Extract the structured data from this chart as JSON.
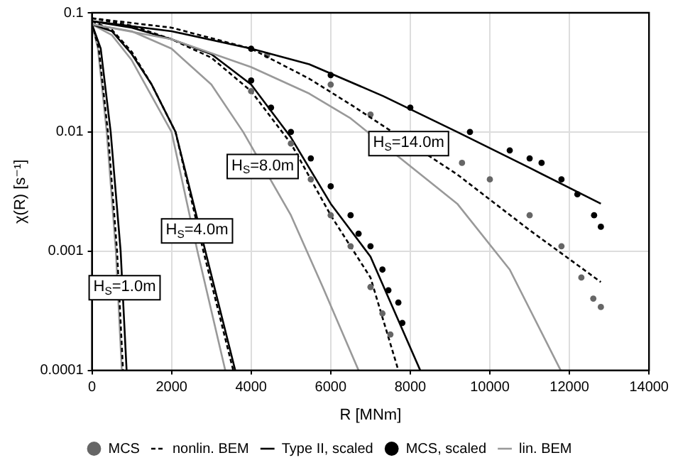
{
  "chart_data": {
    "type": "line",
    "xlabel": "R [MNm]",
    "ylabel": "χ(R) [s⁻¹]",
    "log": "y",
    "grid": true,
    "legend": "bottom",
    "xlim": [
      0,
      14000
    ],
    "xticks": [
      0,
      2000,
      4000,
      6000,
      8000,
      10000,
      12000,
      14000
    ],
    "ylim": [
      0.0001,
      0.1
    ],
    "yticks": [
      0.0001,
      0.001,
      0.01,
      0.1
    ],
    "series": [
      {
        "name": "MCS",
        "type": "scatter",
        "marker": "circle",
        "color": "#666666",
        "x": [
          4000,
          5000,
          5500,
          6000,
          6500,
          7000,
          7300,
          7500
        ],
        "values": [
          0.022,
          0.008,
          0.004,
          0.002,
          0.0011,
          0.0005,
          0.0003,
          0.0002
        ]
      },
      {
        "name": "nonlin. BEM",
        "type": "line",
        "marker": "none",
        "line_style": "dashed",
        "color": "#000000",
        "x": [
          0,
          2000,
          4000,
          5460,
          6500,
          9180,
          11000,
          12790
        ],
        "values": [
          0.09,
          0.075,
          0.05,
          0.028,
          0.017,
          0.0044,
          0.0015,
          0.00055
        ]
      },
      {
        "name": "Type II, scaled",
        "type": "line",
        "marker": "none",
        "line_style": "solid",
        "color": "#000000",
        "x": [
          0,
          2000,
          4000,
          5460,
          7320,
          9180,
          11000,
          12790
        ],
        "values": [
          0.085,
          0.07,
          0.05,
          0.037,
          0.02,
          0.01,
          0.005,
          0.0025
        ]
      },
      {
        "name": "MCS, scaled",
        "type": "scatter",
        "marker": "circle",
        "color": "#000000",
        "x": [
          4000,
          4500,
          5000,
          5500,
          6000,
          6500,
          6700,
          7000,
          7300,
          7450,
          7700,
          7800
        ],
        "values": [
          0.027,
          0.016,
          0.01,
          0.006,
          0.0035,
          0.002,
          0.0014,
          0.0011,
          0.0007,
          0.00047,
          0.00037,
          0.00025
        ]
      },
      {
        "name": "lin. BEM",
        "type": "line",
        "marker": "none",
        "line_style": "solid",
        "color": "#999999",
        "x": [
          0,
          2000,
          4000,
          5460,
          6500,
          9180,
          10500,
          11780
        ],
        "values": [
          0.08,
          0.06,
          0.035,
          0.021,
          0.013,
          0.0025,
          0.0007,
          0.0001
        ]
      },
      {
        "marker": "none",
        "line_style": "solid",
        "color": "#000000",
        "x": [
          0,
          500,
          1000,
          1500,
          2100,
          2850,
          3600
        ],
        "values": [
          0.08,
          0.07,
          0.045,
          0.025,
          0.01,
          0.001,
          0.0001
        ]
      },
      {
        "marker": "none",
        "line_style": "dashed",
        "color": "#000000",
        "x": [
          0,
          500,
          1000,
          1500,
          2100,
          2800,
          3550
        ],
        "values": [
          0.085,
          0.072,
          0.047,
          0.025,
          0.01,
          0.001,
          0.0001
        ]
      },
      {
        "marker": "none",
        "line_style": "solid",
        "color": "#999999",
        "x": [
          0,
          500,
          1000,
          1500,
          2000,
          2650,
          3350
        ],
        "values": [
          0.08,
          0.065,
          0.04,
          0.02,
          0.01,
          0.001,
          0.0001
        ]
      },
      {
        "marker": "none",
        "line_style": "solid",
        "color": "#000000",
        "x": [
          0,
          1000,
          2000,
          3000,
          4000,
          5000,
          6000,
          7000,
          8250
        ],
        "values": [
          0.085,
          0.075,
          0.06,
          0.045,
          0.025,
          0.009,
          0.0025,
          0.0009,
          0.0001
        ]
      },
      {
        "marker": "none",
        "line_style": "dashed",
        "color": "#000000",
        "x": [
          0,
          1000,
          2000,
          3000,
          4000,
          5000,
          6000,
          7000,
          7700
        ],
        "values": [
          0.09,
          0.078,
          0.06,
          0.042,
          0.022,
          0.008,
          0.002,
          0.0006,
          0.0001
        ]
      },
      {
        "marker": "none",
        "line_style": "solid",
        "color": "#999999",
        "x": [
          0,
          1000,
          2000,
          3000,
          3800,
          5000,
          5800,
          6700
        ],
        "values": [
          0.08,
          0.07,
          0.05,
          0.025,
          0.01,
          0.002,
          0.0005,
          0.0001
        ]
      },
      {
        "marker": "none",
        "line_style": "solid",
        "color": "#000000",
        "x": [
          0,
          220,
          470,
          720,
          870
        ],
        "values": [
          0.08,
          0.05,
          0.01,
          0.001,
          0.0001
        ]
      },
      {
        "marker": "none",
        "line_style": "dashed",
        "color": "#000000",
        "x": [
          0,
          170,
          400,
          630,
          780
        ],
        "values": [
          0.082,
          0.05,
          0.01,
          0.001,
          0.0001
        ]
      },
      {
        "marker": "none",
        "line_style": "solid",
        "color": "#999999",
        "x": [
          0,
          150,
          370,
          600,
          750
        ],
        "values": [
          0.08,
          0.05,
          0.01,
          0.001,
          0.0001
        ]
      },
      {
        "type": "scatter",
        "marker": "circle",
        "color": "#000000",
        "x": [
          4000,
          6000,
          8000,
          9500,
          10500,
          11000,
          11300,
          11800,
          12200,
          12620,
          12790
        ],
        "values": [
          0.05,
          0.03,
          0.016,
          0.01,
          0.007,
          0.006,
          0.0055,
          0.004,
          0.003,
          0.002,
          0.0016
        ]
      },
      {
        "type": "scatter",
        "marker": "circle",
        "color": "#666666",
        "x": [
          4400,
          6000,
          7000,
          9300,
          10000,
          11000,
          11800,
          12300,
          12600,
          12790
        ],
        "values": [
          0.044,
          0.025,
          0.014,
          0.0055,
          0.004,
          0.002,
          0.0011,
          0.0006,
          0.0004,
          0.00034
        ]
      }
    ],
    "annotations": [
      {
        "text": "H$_{S}$=1.0m",
        "x": 820,
        "y": 0.0005
      },
      {
        "text": "H$_{S}$=4.0m",
        "x": 2640,
        "y": 0.0015
      },
      {
        "text": "H$_{S}$=8.0m",
        "x": 4290,
        "y": 0.0052
      },
      {
        "text": "H$_{S}$=14.0m",
        "x": 7960,
        "y": 0.0081
      }
    ]
  }
}
